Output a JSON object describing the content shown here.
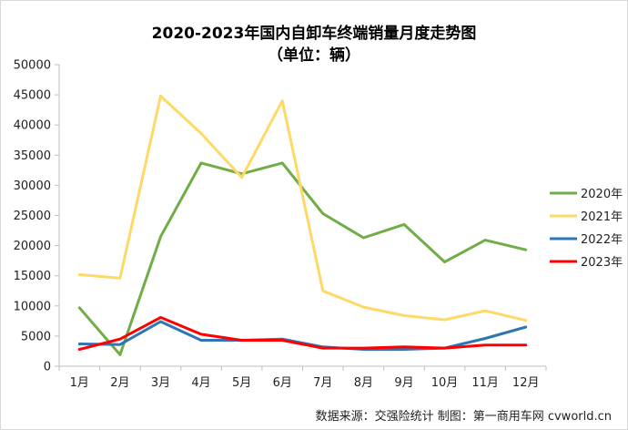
{
  "chart_data": {
    "type": "line",
    "title": "2020-2023年国内自卸车终端销量月度走势图",
    "subtitle": "（单位：辆）",
    "categories": [
      "1月",
      "2月",
      "3月",
      "4月",
      "5月",
      "6月",
      "7月",
      "8月",
      "9月",
      "10月",
      "11月",
      "12月"
    ],
    "ylim": [
      0,
      50000
    ],
    "yticks": [
      0,
      5000,
      10000,
      15000,
      20000,
      25000,
      30000,
      35000,
      40000,
      45000,
      50000
    ],
    "grid": false,
    "legend": "right",
    "series": [
      {
        "name": "2020年",
        "color": "#70ad47",
        "values": [
          9700,
          1900,
          21500,
          33700,
          31900,
          33700,
          25300,
          21300,
          23500,
          17300,
          20900,
          19300
        ]
      },
      {
        "name": "2021年",
        "color": "#ffd966",
        "values": [
          15200,
          14600,
          44800,
          38600,
          31300,
          44000,
          12500,
          9800,
          8400,
          7700,
          9200,
          7600
        ]
      },
      {
        "name": "2022年",
        "color": "#2e75b6",
        "values": [
          3700,
          3600,
          7400,
          4300,
          4300,
          4500,
          3200,
          2800,
          2800,
          3000,
          4600,
          6500
        ]
      },
      {
        "name": "2023年",
        "color": "#ff0000",
        "values": [
          2800,
          4500,
          8100,
          5300,
          4300,
          4300,
          3000,
          3000,
          3200,
          3000,
          3500,
          3500
        ]
      }
    ]
  },
  "source_note": "数据来源：交强险统计  制图：第一商用车网 cvworld.cn"
}
